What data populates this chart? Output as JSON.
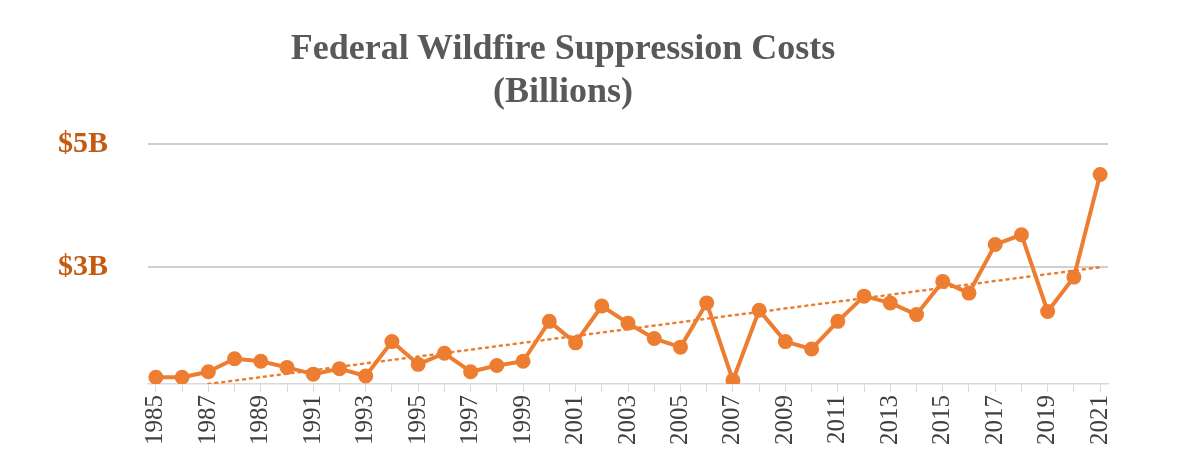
{
  "chart_data": {
    "type": "line",
    "title": [
      "Federal Wildfire Suppression Costs",
      "(Billions)"
    ],
    "x": [
      1985,
      1986,
      1987,
      1988,
      1989,
      1990,
      1991,
      1992,
      1993,
      1994,
      1995,
      1996,
      1997,
      1998,
      1999,
      2000,
      2001,
      2002,
      2003,
      2004,
      2005,
      2006,
      2007,
      2008,
      2009,
      2010,
      2011,
      2012,
      2013,
      2014,
      2015,
      2016,
      2017,
      2018,
      2019,
      2020,
      2021
    ],
    "series": [
      {
        "color": "#ed7d31",
        "marker": "circle",
        "line_style": "solid",
        "values": [
          1.21,
          1.21,
          1.3,
          1.51,
          1.47,
          1.37,
          1.26,
          1.35,
          1.23,
          1.79,
          1.42,
          1.6,
          1.3,
          1.4,
          1.47,
          2.12,
          1.77,
          2.37,
          2.09,
          1.84,
          1.7,
          2.42,
          1.16,
          2.3,
          1.79,
          1.67,
          2.12,
          2.53,
          2.42,
          2.23,
          2.77,
          2.58,
          3.37,
          3.53,
          2.28,
          2.84,
          4.51
        ]
      },
      {
        "type": "line",
        "color": "#ed7d31",
        "marker": "none",
        "line_style": "dotted",
        "x": [
          1987,
          2021
        ],
        "values": [
          1.1,
          3.0
        ]
      }
    ],
    "xlim": [
      1984.7,
      2021.3
    ],
    "xticks": [
      1985,
      {
        "value": 1986,
        "label": null
      },
      1987,
      {
        "value": 1988,
        "label": null
      },
      1989,
      {
        "value": 1990,
        "label": null
      },
      1991,
      {
        "value": 1992,
        "label": null
      },
      1993,
      {
        "value": 1994,
        "label": null
      },
      1995,
      {
        "value": 1996,
        "label": null
      },
      1997,
      {
        "value": 1998,
        "label": null
      },
      1999,
      {
        "value": 2000,
        "label": null
      },
      2001,
      {
        "value": 2002,
        "label": null
      },
      2003,
      {
        "value": 2004,
        "label": null
      },
      2005,
      {
        "value": 2006,
        "label": null
      },
      2007,
      {
        "value": 2008,
        "label": null
      },
      2009,
      {
        "value": 2010,
        "label": null
      },
      2011,
      {
        "value": 2012,
        "label": null
      },
      2013,
      {
        "value": 2014,
        "label": null
      },
      2015,
      {
        "value": 2016,
        "label": null
      },
      2017,
      {
        "value": 2018,
        "label": null
      },
      2019,
      {
        "value": 2020,
        "label": null
      },
      2021
    ],
    "ylim": [
      1.1,
      5
    ],
    "yticks": [
      {
        "value": 3,
        "label": "$3B"
      },
      {
        "value": 5,
        "label": "$5B"
      }
    ],
    "grid": "y",
    "legend": false
  }
}
